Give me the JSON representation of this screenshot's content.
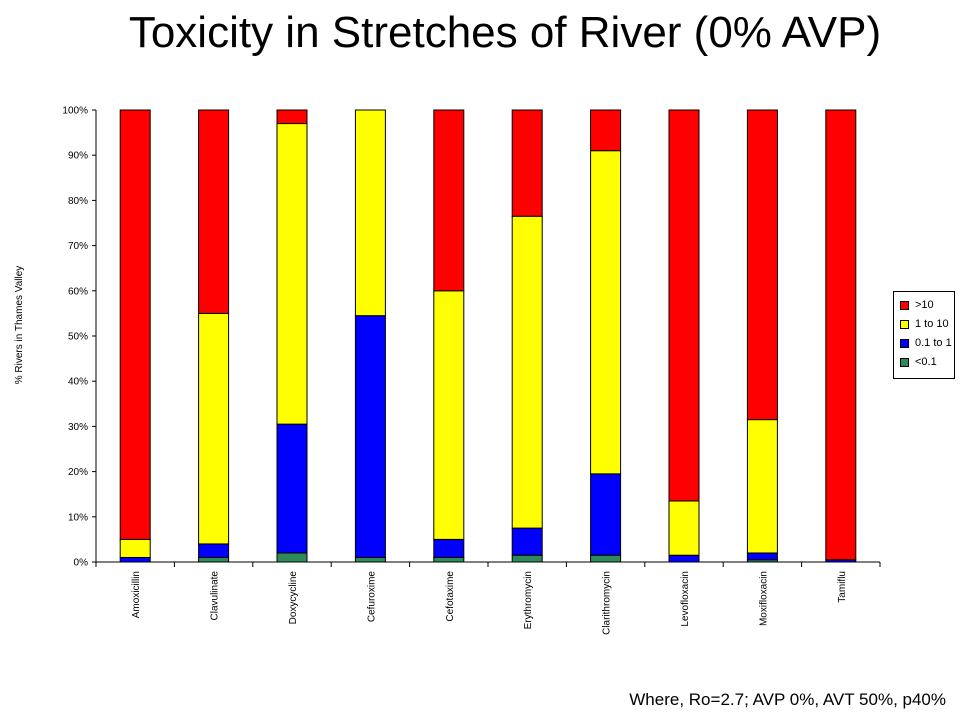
{
  "slide": {
    "title": "Toxicity in Stretches of River (0% AVP)",
    "footnote": "Where, Ro=2.7; AVP 0%, AVT 50%, p40%"
  },
  "chart_data": {
    "type": "bar",
    "stacked": true,
    "categories": [
      "Amoxicillin",
      "Clavulinate",
      "Doxycycline",
      "Cefuroxime",
      "Cefotaxime",
      "Erythromycin",
      "Clarithromycin",
      "Levofloxacin",
      "Moxifloxacin",
      "Tamiflu"
    ],
    "series": [
      {
        "name": "<0.1",
        "color": "#2e8b57",
        "values": [
          0,
          1,
          2,
          1,
          1,
          1.5,
          1.5,
          0,
          0.5,
          0
        ]
      },
      {
        "name": "0.1 to 1",
        "color": "#0000ff",
        "values": [
          1,
          3,
          28.5,
          53.5,
          4,
          6,
          18,
          1.5,
          1.5,
          0.5
        ]
      },
      {
        "name": "1 to 10",
        "color": "#ffff00",
        "values": [
          4,
          51,
          66.5,
          45.5,
          55,
          69,
          71.5,
          12,
          29.5,
          0
        ]
      },
      {
        "name": ">10",
        "color": "#ff0000",
        "values": [
          95,
          45,
          3,
          0,
          40,
          23.5,
          9,
          86.5,
          68.5,
          99.5
        ]
      }
    ],
    "legend_order": [
      ">10",
      "1 to 10",
      "0.1 to 1",
      "<0.1"
    ],
    "ylabel": "% Rivers in Thames Valley",
    "ylim": [
      0,
      100
    ],
    "yticks": [
      "0%",
      "10%",
      "20%",
      "30%",
      "40%",
      "50%",
      "60%",
      "70%",
      "80%",
      "90%",
      "100%"
    ],
    "legend_position": "right",
    "grid": false
  }
}
